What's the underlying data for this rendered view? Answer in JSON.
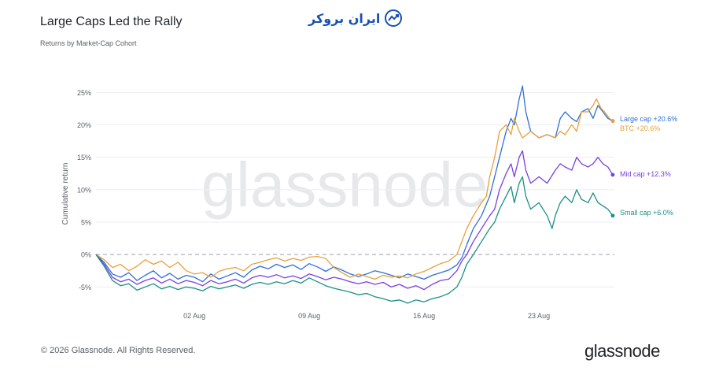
{
  "header": {
    "title": "Large Caps Led the Rally",
    "subtitle": "Returns by Market-Cap Cohort"
  },
  "brand": {
    "top_logo_text": "ایران بروکر",
    "watermark": "glassnode",
    "footer_logo": "glassnode"
  },
  "footer": {
    "copyright": "© 2026 Glassnode. All Rights Reserved."
  },
  "chart_data": {
    "type": "line",
    "ylabel": "Cumulative return",
    "y_ticks": [
      "25%",
      "20%",
      "15%",
      "10%",
      "5%",
      "0%",
      "-5%"
    ],
    "y_tick_values": [
      25,
      20,
      15,
      10,
      5,
      0,
      -5
    ],
    "ylim": [
      -8,
      26.5
    ],
    "x_ticks": [
      "02 Aug",
      "09 Aug",
      "16 Aug",
      "23 Aug"
    ],
    "x_tick_days": [
      2,
      9,
      16,
      23
    ],
    "xlim": [
      27,
      58.6
    ],
    "x_day_origin": "27 Jul",
    "grid": true,
    "zero_line": true,
    "series": [
      {
        "name": "Large cap",
        "end_label": "Large cap +20.6%",
        "color": "#2f6fd6",
        "points": [
          [
            27,
            0
          ],
          [
            27.5,
            -1.2
          ],
          [
            28,
            -3
          ],
          [
            28.5,
            -3.5
          ],
          [
            29,
            -2.8
          ],
          [
            29.5,
            -4
          ],
          [
            30,
            -3.2
          ],
          [
            30.5,
            -2.5
          ],
          [
            31,
            -3.6
          ],
          [
            31.5,
            -2.9
          ],
          [
            32,
            -3.8
          ],
          [
            32.5,
            -3.2
          ],
          [
            33,
            -3.5
          ],
          [
            33.5,
            -4.2
          ],
          [
            34,
            -3
          ],
          [
            34.5,
            -3.8
          ],
          [
            35,
            -3.3
          ],
          [
            35.5,
            -2.8
          ],
          [
            36,
            -3.5
          ],
          [
            36.5,
            -2.4
          ],
          [
            37,
            -1.8
          ],
          [
            37.5,
            -2.2
          ],
          [
            38,
            -1.5
          ],
          [
            38.5,
            -2
          ],
          [
            39,
            -1.6
          ],
          [
            39.5,
            -2.3
          ],
          [
            40,
            -1.4
          ],
          [
            40.5,
            -1.9
          ],
          [
            41,
            -2.6
          ],
          [
            41.5,
            -1.9
          ],
          [
            42,
            -2.4
          ],
          [
            42.5,
            -3
          ],
          [
            43,
            -3.4
          ],
          [
            43.5,
            -3
          ],
          [
            44,
            -2.5
          ],
          [
            44.5,
            -2.8
          ],
          [
            45,
            -3.2
          ],
          [
            45.5,
            -3.6
          ],
          [
            46,
            -3
          ],
          [
            46.5,
            -3.4
          ],
          [
            47,
            -3.8
          ],
          [
            47.5,
            -3.2
          ],
          [
            48,
            -2.8
          ],
          [
            48.5,
            -2.4
          ],
          [
            49,
            -1.6
          ],
          [
            49.3,
            -0.5
          ],
          [
            49.6,
            1.5
          ],
          [
            50,
            4
          ],
          [
            50.5,
            6
          ],
          [
            51,
            9
          ],
          [
            51.3,
            12
          ],
          [
            51.6,
            15
          ],
          [
            52,
            19
          ],
          [
            52.3,
            21
          ],
          [
            52.5,
            20
          ],
          [
            52.8,
            24
          ],
          [
            53,
            26
          ],
          [
            53.2,
            22
          ],
          [
            53.5,
            19
          ],
          [
            54,
            18
          ],
          [
            54.5,
            18.5
          ],
          [
            55,
            18
          ],
          [
            55.3,
            21
          ],
          [
            55.6,
            22
          ],
          [
            56,
            21
          ],
          [
            56.3,
            20.5
          ],
          [
            56.6,
            22
          ],
          [
            57,
            22.5
          ],
          [
            57.3,
            21
          ],
          [
            57.6,
            23
          ],
          [
            57.9,
            22
          ],
          [
            58.2,
            21
          ],
          [
            58.5,
            20.6
          ]
        ]
      },
      {
        "name": "BTC",
        "end_label": "BTC +20.6%",
        "color": "#e8a13a",
        "points": [
          [
            27,
            0
          ],
          [
            27.5,
            -0.8
          ],
          [
            28,
            -2
          ],
          [
            28.5,
            -1.5
          ],
          [
            29,
            -2.5
          ],
          [
            29.5,
            -1.8
          ],
          [
            30,
            -0.8
          ],
          [
            30.5,
            -1.5
          ],
          [
            31,
            -1
          ],
          [
            31.5,
            -2
          ],
          [
            32,
            -1.2
          ],
          [
            32.5,
            -2.5
          ],
          [
            33,
            -3
          ],
          [
            33.5,
            -2.8
          ],
          [
            34,
            -3.5
          ],
          [
            34.5,
            -2.6
          ],
          [
            35,
            -2.2
          ],
          [
            35.5,
            -2
          ],
          [
            36,
            -2.5
          ],
          [
            36.5,
            -1.5
          ],
          [
            37,
            -1.2
          ],
          [
            37.5,
            -0.8
          ],
          [
            38,
            -0.5
          ],
          [
            38.5,
            -1
          ],
          [
            39,
            -0.6
          ],
          [
            39.5,
            -0.9
          ],
          [
            40,
            -0.4
          ],
          [
            40.5,
            -0.3
          ],
          [
            41,
            -0.6
          ],
          [
            41.5,
            -2
          ],
          [
            42,
            -2.8
          ],
          [
            42.5,
            -3.5
          ],
          [
            43,
            -3
          ],
          [
            43.5,
            -3.4
          ],
          [
            44,
            -3.8
          ],
          [
            44.5,
            -3.2
          ],
          [
            45,
            -3.5
          ],
          [
            45.5,
            -3.3
          ],
          [
            46,
            -3.6
          ],
          [
            46.5,
            -3
          ],
          [
            47,
            -2.6
          ],
          [
            47.5,
            -2
          ],
          [
            48,
            -1.4
          ],
          [
            48.5,
            -1
          ],
          [
            49,
            0
          ],
          [
            49.3,
            2
          ],
          [
            49.6,
            4
          ],
          [
            50,
            6
          ],
          [
            50.5,
            8
          ],
          [
            50.8,
            9
          ],
          [
            51,
            12
          ],
          [
            51.3,
            15
          ],
          [
            51.6,
            19
          ],
          [
            52,
            20
          ],
          [
            52.3,
            18.5
          ],
          [
            52.5,
            21
          ],
          [
            52.8,
            19
          ],
          [
            53,
            18
          ],
          [
            53.5,
            19
          ],
          [
            54,
            18
          ],
          [
            54.5,
            18.5
          ],
          [
            55,
            18
          ],
          [
            55.3,
            19
          ],
          [
            55.6,
            18.5
          ],
          [
            56,
            20
          ],
          [
            56.3,
            19
          ],
          [
            56.6,
            22
          ],
          [
            57,
            22
          ],
          [
            57.3,
            23
          ],
          [
            57.5,
            24
          ],
          [
            57.8,
            22.5
          ],
          [
            58,
            22
          ],
          [
            58.3,
            21
          ],
          [
            58.5,
            20.6
          ]
        ]
      },
      {
        "name": "Mid cap",
        "end_label": "Mid cap +12.3%",
        "color": "#7b3fe0",
        "points": [
          [
            27,
            0
          ],
          [
            27.5,
            -1.5
          ],
          [
            28,
            -3.5
          ],
          [
            28.5,
            -4.2
          ],
          [
            29,
            -3.8
          ],
          [
            29.5,
            -4.6
          ],
          [
            30,
            -4
          ],
          [
            30.5,
            -3.6
          ],
          [
            31,
            -4.4
          ],
          [
            31.5,
            -3.8
          ],
          [
            32,
            -4.5
          ],
          [
            32.5,
            -4
          ],
          [
            33,
            -4.3
          ],
          [
            33.5,
            -4.8
          ],
          [
            34,
            -4
          ],
          [
            34.5,
            -4.5
          ],
          [
            35,
            -4.2
          ],
          [
            35.5,
            -3.8
          ],
          [
            36,
            -4.4
          ],
          [
            36.5,
            -3.6
          ],
          [
            37,
            -3.2
          ],
          [
            37.5,
            -3.5
          ],
          [
            38,
            -3.1
          ],
          [
            38.5,
            -3.6
          ],
          [
            39,
            -3.3
          ],
          [
            39.5,
            -3.7
          ],
          [
            40,
            -3
          ],
          [
            40.5,
            -3.4
          ],
          [
            41,
            -3.9
          ],
          [
            41.5,
            -3.5
          ],
          [
            42,
            -3.8
          ],
          [
            42.5,
            -4.2
          ],
          [
            43,
            -4.5
          ],
          [
            43.5,
            -4.2
          ],
          [
            44,
            -4.6
          ],
          [
            44.5,
            -4.3
          ],
          [
            45,
            -5
          ],
          [
            45.5,
            -4.6
          ],
          [
            46,
            -5.2
          ],
          [
            46.5,
            -4.8
          ],
          [
            47,
            -5.4
          ],
          [
            47.5,
            -4.6
          ],
          [
            48,
            -4
          ],
          [
            48.5,
            -3.8
          ],
          [
            49,
            -2.5
          ],
          [
            49.3,
            -1
          ],
          [
            49.6,
            0
          ],
          [
            50,
            2
          ],
          [
            50.5,
            4
          ],
          [
            51,
            6
          ],
          [
            51.3,
            7
          ],
          [
            51.6,
            10
          ],
          [
            52,
            12.5
          ],
          [
            52.3,
            14
          ],
          [
            52.5,
            12
          ],
          [
            52.8,
            15
          ],
          [
            53,
            16
          ],
          [
            53.2,
            13
          ],
          [
            53.5,
            11
          ],
          [
            54,
            12
          ],
          [
            54.5,
            11
          ],
          [
            55,
            13
          ],
          [
            55.3,
            14
          ],
          [
            55.6,
            13.5
          ],
          [
            56,
            13
          ],
          [
            56.3,
            15
          ],
          [
            56.6,
            14
          ],
          [
            57,
            13.5
          ],
          [
            57.3,
            14
          ],
          [
            57.6,
            15
          ],
          [
            57.9,
            14
          ],
          [
            58.2,
            13.5
          ],
          [
            58.5,
            12.3
          ]
        ]
      },
      {
        "name": "Small cap",
        "end_label": "Small cap +6.0%",
        "color": "#1a8f86",
        "points": [
          [
            27,
            0
          ],
          [
            27.5,
            -1.8
          ],
          [
            28,
            -4
          ],
          [
            28.5,
            -4.8
          ],
          [
            29,
            -4.5
          ],
          [
            29.5,
            -5.5
          ],
          [
            30,
            -5
          ],
          [
            30.5,
            -4.5
          ],
          [
            31,
            -5.3
          ],
          [
            31.5,
            -4.9
          ],
          [
            32,
            -5.4
          ],
          [
            32.5,
            -5
          ],
          [
            33,
            -5.2
          ],
          [
            33.5,
            -5.6
          ],
          [
            34,
            -4.9
          ],
          [
            34.5,
            -5.3
          ],
          [
            35,
            -5
          ],
          [
            35.5,
            -4.7
          ],
          [
            36,
            -5.2
          ],
          [
            36.5,
            -4.6
          ],
          [
            37,
            -4.3
          ],
          [
            37.5,
            -4.6
          ],
          [
            38,
            -4.2
          ],
          [
            38.5,
            -4.5
          ],
          [
            39,
            -4
          ],
          [
            39.5,
            -4.4
          ],
          [
            40,
            -3.6
          ],
          [
            40.5,
            -4.2
          ],
          [
            41,
            -4.8
          ],
          [
            41.5,
            -5.2
          ],
          [
            42,
            -5.5
          ],
          [
            42.5,
            -5.8
          ],
          [
            43,
            -6.2
          ],
          [
            43.5,
            -6
          ],
          [
            44,
            -6.5
          ],
          [
            44.5,
            -6.8
          ],
          [
            45,
            -7.2
          ],
          [
            45.5,
            -7
          ],
          [
            46,
            -7.5
          ],
          [
            46.5,
            -7
          ],
          [
            47,
            -7.3
          ],
          [
            47.5,
            -6.8
          ],
          [
            48,
            -6.5
          ],
          [
            48.5,
            -6
          ],
          [
            49,
            -5
          ],
          [
            49.3,
            -3.5
          ],
          [
            49.6,
            -1.5
          ],
          [
            50,
            0
          ],
          [
            50.5,
            2
          ],
          [
            51,
            4
          ],
          [
            51.3,
            5
          ],
          [
            51.6,
            7
          ],
          [
            52,
            9
          ],
          [
            52.3,
            10.5
          ],
          [
            52.5,
            8
          ],
          [
            52.8,
            11
          ],
          [
            53,
            12
          ],
          [
            53.2,
            9
          ],
          [
            53.5,
            7
          ],
          [
            54,
            8
          ],
          [
            54.5,
            6
          ],
          [
            54.8,
            4
          ],
          [
            55,
            6
          ],
          [
            55.3,
            8
          ],
          [
            55.6,
            9
          ],
          [
            56,
            8
          ],
          [
            56.3,
            10
          ],
          [
            56.6,
            8.5
          ],
          [
            57,
            8
          ],
          [
            57.3,
            9.5
          ],
          [
            57.6,
            8
          ],
          [
            57.9,
            7.5
          ],
          [
            58.2,
            7
          ],
          [
            58.5,
            6
          ]
        ]
      }
    ]
  }
}
